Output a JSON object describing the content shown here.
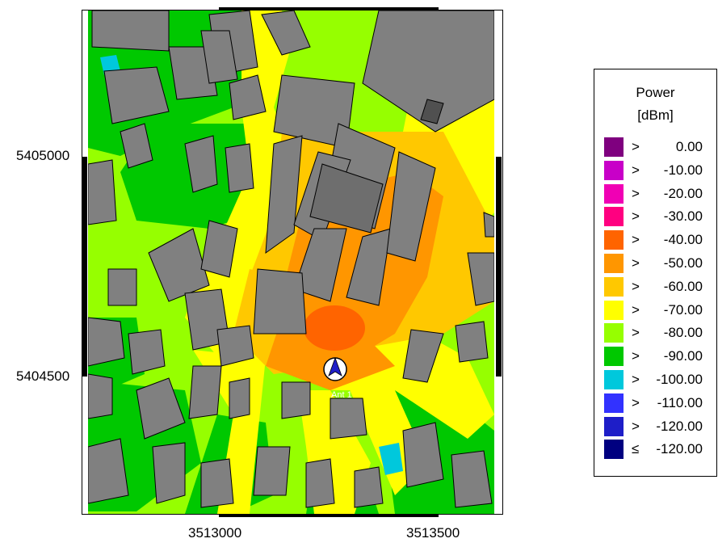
{
  "map": {
    "x_ticks": [
      "3513000",
      "3513500"
    ],
    "y_ticks": [
      "5405000",
      "5404500"
    ],
    "antenna_label": "Ant 1",
    "antenna_icon": "north-arrow-antenna-icon"
  },
  "legend": {
    "title_line1": "Power",
    "title_line2": "[dBm]",
    "items": [
      {
        "op": ">",
        "value": "0.00",
        "color": "#7f007f"
      },
      {
        "op": ">",
        "value": "-10.00",
        "color": "#c800c8"
      },
      {
        "op": ">",
        "value": "-20.00",
        "color": "#f000b4"
      },
      {
        "op": ">",
        "value": "-30.00",
        "color": "#ff0080"
      },
      {
        "op": ">",
        "value": "-40.00",
        "color": "#ff6400"
      },
      {
        "op": ">",
        "value": "-50.00",
        "color": "#ff9600"
      },
      {
        "op": ">",
        "value": "-60.00",
        "color": "#ffc800"
      },
      {
        "op": ">",
        "value": "-70.00",
        "color": "#ffff00"
      },
      {
        "op": ">",
        "value": "-80.00",
        "color": "#96ff00"
      },
      {
        "op": ">",
        "value": "-90.00",
        "color": "#00c800"
      },
      {
        "op": ">",
        "value": "-100.00",
        "color": "#00c8dc"
      },
      {
        "op": ">",
        "value": "-110.00",
        "color": "#3232ff"
      },
      {
        "op": ">",
        "value": "-120.00",
        "color": "#1e1ec8"
      },
      {
        "op": "≤",
        "value": "-120.00",
        "color": "#000080"
      }
    ]
  }
}
